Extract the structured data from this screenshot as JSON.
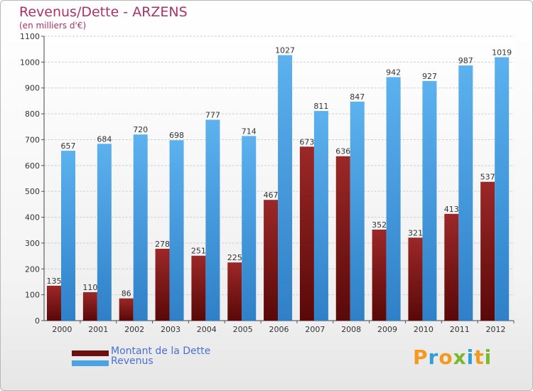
{
  "title": "Revenus/Dette - ARZENS",
  "subtitle": "(en milliers d'€)",
  "chart_data": {
    "type": "bar",
    "title": "Revenus/Dette - ARZENS",
    "subtitle": "(en milliers d'€)",
    "xlabel": "",
    "ylabel": "",
    "ylim": [
      0,
      1100
    ],
    "yticks": [
      "0",
      "100",
      "200",
      "300",
      "400",
      "500",
      "600",
      "700",
      "800",
      "900",
      "1000",
      "1100"
    ],
    "grid": true,
    "categories": [
      "2000",
      "2001",
      "2002",
      "2003",
      "2004",
      "2005",
      "2006",
      "2007",
      "2008",
      "2009",
      "2010",
      "2011",
      "2012"
    ],
    "series": [
      {
        "name": "Montant de la Dette",
        "color": "#8b1a1a",
        "values": [
          135,
          110,
          86,
          278,
          251,
          225,
          467,
          673,
          636,
          352,
          321,
          413,
          537
        ],
        "labels": [
          "135",
          "110",
          "86",
          "278",
          "251",
          "225",
          "467",
          "673",
          "636",
          "352",
          "321",
          "413",
          "537"
        ]
      },
      {
        "name": "Revenus",
        "color": "#4aa3e6",
        "values": [
          657,
          684,
          720,
          698,
          777,
          714,
          1027,
          811,
          847,
          942,
          927,
          987,
          1019
        ],
        "labels": [
          "657",
          "684",
          "720",
          "698",
          "777",
          "714",
          "1027",
          "811",
          "847",
          "942",
          "927",
          "987",
          "1019"
        ]
      }
    ],
    "legend_position": "bottom-left"
  },
  "legend": [
    {
      "label": "Montant de la Dette",
      "color": "#6e0f0f"
    },
    {
      "label": "Revenus",
      "color": "#4aa3e6"
    }
  ],
  "logo": {
    "letters": [
      "P",
      "r",
      "o",
      "x",
      "i",
      "t",
      "i"
    ],
    "colors": [
      "#f39a1e",
      "#2f9fd8",
      "#f39a1e",
      "#7cb82f",
      "#2f9fd8",
      "#f39a1e",
      "#7cb82f"
    ]
  }
}
